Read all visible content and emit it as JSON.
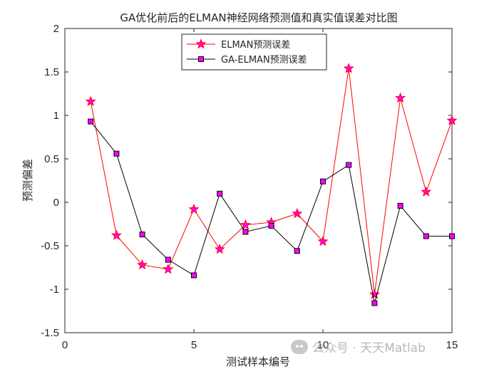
{
  "chart_data": {
    "type": "line",
    "title": "GA优化前后的ELMAN神经网络预测值和真实值误差对比图",
    "xlabel": "测试样本编号",
    "ylabel": "预测偏差",
    "xlim": [
      0,
      15
    ],
    "ylim": [
      -1.5,
      2
    ],
    "xticks": [
      0,
      5,
      10,
      15
    ],
    "yticks": [
      -1.5,
      -1,
      -0.5,
      0,
      0.5,
      1,
      1.5,
      2
    ],
    "xtick_labels": [
      "0",
      "5",
      "10",
      "15"
    ],
    "ytick_labels": [
      "-1.5",
      "-1",
      "-0.5",
      "0",
      "0.5",
      "1",
      "1.5",
      "2"
    ],
    "grid": false,
    "legend_position": "top-center",
    "x": [
      1,
      2,
      3,
      4,
      5,
      6,
      7,
      8,
      9,
      10,
      11,
      12,
      13,
      14,
      15
    ],
    "series": [
      {
        "name": "ELMAN预测误差",
        "color": "#ff0000",
        "marker": "star",
        "marker_face": "#ff00ff",
        "values": [
          1.16,
          -0.38,
          -0.72,
          -0.77,
          -0.08,
          -0.54,
          -0.26,
          -0.23,
          -0.13,
          -0.45,
          1.54,
          -1.06,
          1.2,
          0.12,
          0.94
        ]
      },
      {
        "name": "GA-ELMAN预测误差",
        "color": "#000000",
        "marker": "square",
        "marker_face": "#ff00ff",
        "values": [
          0.93,
          0.56,
          -0.37,
          -0.66,
          -0.84,
          0.1,
          -0.34,
          -0.27,
          -0.56,
          0.24,
          0.43,
          -1.16,
          -0.04,
          -0.39,
          -0.39
        ]
      }
    ]
  },
  "watermark": {
    "icon": "wechat-icon",
    "text": "公众号 · 天天Matlab"
  }
}
